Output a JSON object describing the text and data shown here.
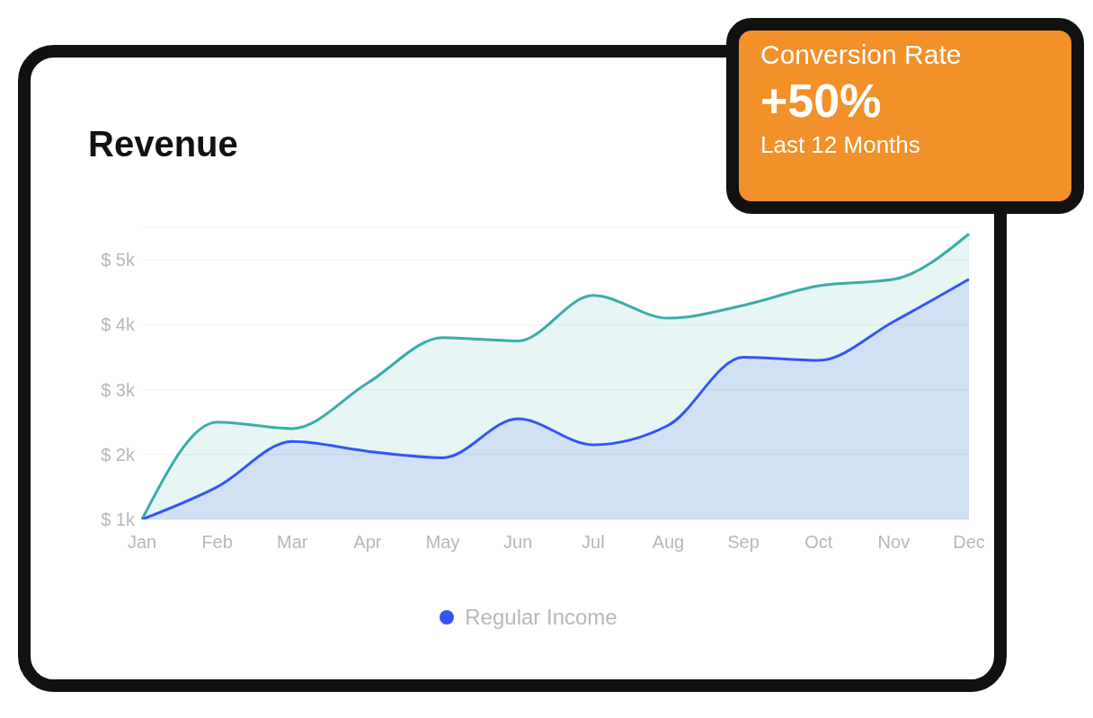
{
  "chart_data": {
    "type": "area",
    "title": "Revenue",
    "categories": [
      "Jan",
      "Feb",
      "Mar",
      "Apr",
      "May",
      "Jun",
      "Jul",
      "Aug",
      "Sep",
      "Oct",
      "Nov",
      "Dec"
    ],
    "series": [
      {
        "color": "#3aada8",
        "values": [
          1.0,
          2.5,
          2.4,
          3.1,
          3.8,
          3.75,
          4.45,
          4.1,
          4.3,
          4.6,
          4.7,
          5.4
        ]
      },
      {
        "name": "Regular Income",
        "color": "#3355f5",
        "values": [
          1.0,
          1.5,
          2.2,
          2.05,
          1.95,
          2.55,
          2.15,
          2.45,
          3.5,
          3.45,
          4.05,
          4.7
        ]
      }
    ],
    "ylim": [
      1,
      5.5
    ],
    "yticks": [
      {
        "value": 1,
        "label": "$ 1k"
      },
      {
        "value": 2,
        "label": "$ 2k"
      },
      {
        "value": 3,
        "label": "$ 3k"
      },
      {
        "value": 4,
        "label": "$ 4k"
      },
      {
        "value": 5,
        "label": "$ 5k"
      }
    ],
    "grid": "y",
    "legend": "bottom",
    "annotations": [
      "Conversion Rate",
      "+50%",
      "Last 12 Months"
    ]
  }
}
